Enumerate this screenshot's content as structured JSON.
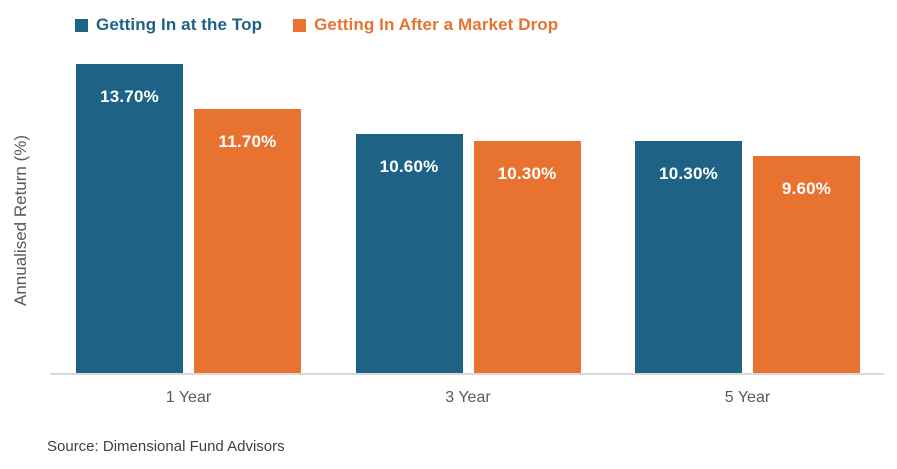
{
  "chart_data": {
    "type": "bar",
    "categories": [
      "1 Year",
      "3 Year",
      "5 Year"
    ],
    "series": [
      {
        "name": "Getting In at the Top",
        "color": "#1E6385",
        "values": [
          13.7,
          10.6,
          10.3
        ],
        "labels": [
          "13.70%",
          "10.60%",
          "10.30%"
        ]
      },
      {
        "name": "Getting In After a Market Drop",
        "color": "#E87331",
        "values": [
          11.7,
          10.3,
          9.6
        ],
        "labels": [
          "11.70%",
          "10.30%",
          "9.60%"
        ]
      }
    ],
    "title": "",
    "xlabel": "",
    "ylabel": "Annualised Return (%)",
    "ylim": [
      0,
      13.7
    ],
    "grid": false,
    "legend_position": "top",
    "data_label_position": "inside-end",
    "value_label_color": "#FFFFFF",
    "axis_line_color": "#D9D9D9",
    "category_label_color": "#595959"
  },
  "source": "Source: Dimensional Fund Advisors"
}
